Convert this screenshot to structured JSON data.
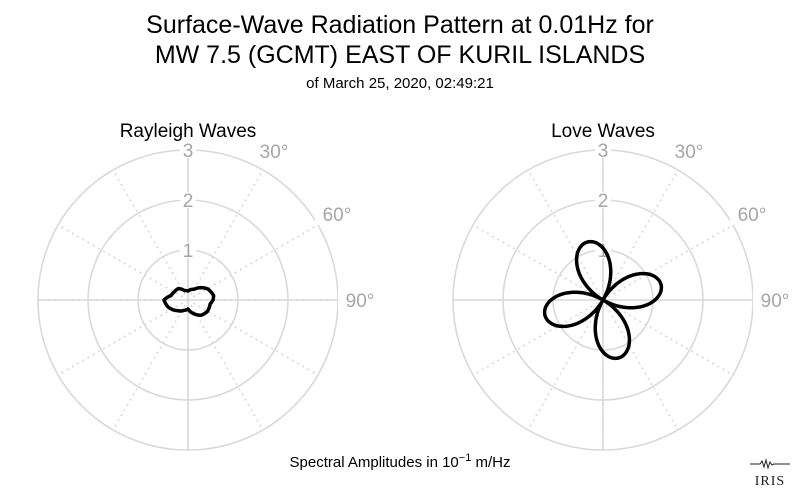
{
  "title": {
    "line1": "Surface-Wave Radiation Pattern at 0.01Hz for",
    "line2": "MW 7.5 (GCMT) EAST OF KURIL ISLANDS",
    "line3": "of March 25, 2020, 02:49:21"
  },
  "caption": {
    "prefix": "Spectral Amplitudes in 10",
    "exponent": "−1",
    "suffix": " m/Hz"
  },
  "logo": {
    "text": "IRIS"
  },
  "colors": {
    "grid": "#d9d9d9",
    "label": "#a6a6a6",
    "curve": "#000000"
  },
  "chart_data": [
    {
      "type": "polar-line",
      "title": "Rayleigh Waves",
      "rlim": [
        0,
        3
      ],
      "radial_ticks": [
        1,
        2,
        3
      ],
      "radial_tick_labels": [
        "1",
        "2",
        "3"
      ],
      "angle_tick_labels": [
        "30°",
        "60°",
        "90°"
      ],
      "angle_ticks_deg": [
        30,
        60,
        90
      ],
      "angle_zero": "north",
      "direction": "clockwise",
      "grid": true,
      "series": [
        {
          "azimuth_deg": [
            0,
            30,
            60,
            80,
            90,
            100,
            120,
            140,
            160,
            180,
            200,
            225,
            250,
            270,
            285,
            300,
            320,
            340,
            360
          ],
          "amplitude": [
            0.18,
            0.25,
            0.45,
            0.52,
            0.5,
            0.45,
            0.45,
            0.4,
            0.28,
            0.18,
            0.22,
            0.3,
            0.42,
            0.48,
            0.35,
            0.32,
            0.3,
            0.2,
            0.18
          ]
        }
      ]
    },
    {
      "type": "polar-line",
      "title": "Love Waves",
      "rlim": [
        0,
        3
      ],
      "radial_ticks": [
        1,
        2,
        3
      ],
      "radial_tick_labels": [
        "1",
        "2",
        "3"
      ],
      "angle_tick_labels": [
        "30°",
        "60°",
        "90°"
      ],
      "angle_ticks_deg": [
        30,
        60,
        90
      ],
      "angle_zero": "north",
      "direction": "clockwise",
      "grid": true,
      "series": [
        {
          "pattern": "four-lobed",
          "peak_amplitude": 1.2,
          "lobe_azimuths_deg": [
            -15,
            75,
            165,
            255
          ]
        }
      ]
    }
  ]
}
